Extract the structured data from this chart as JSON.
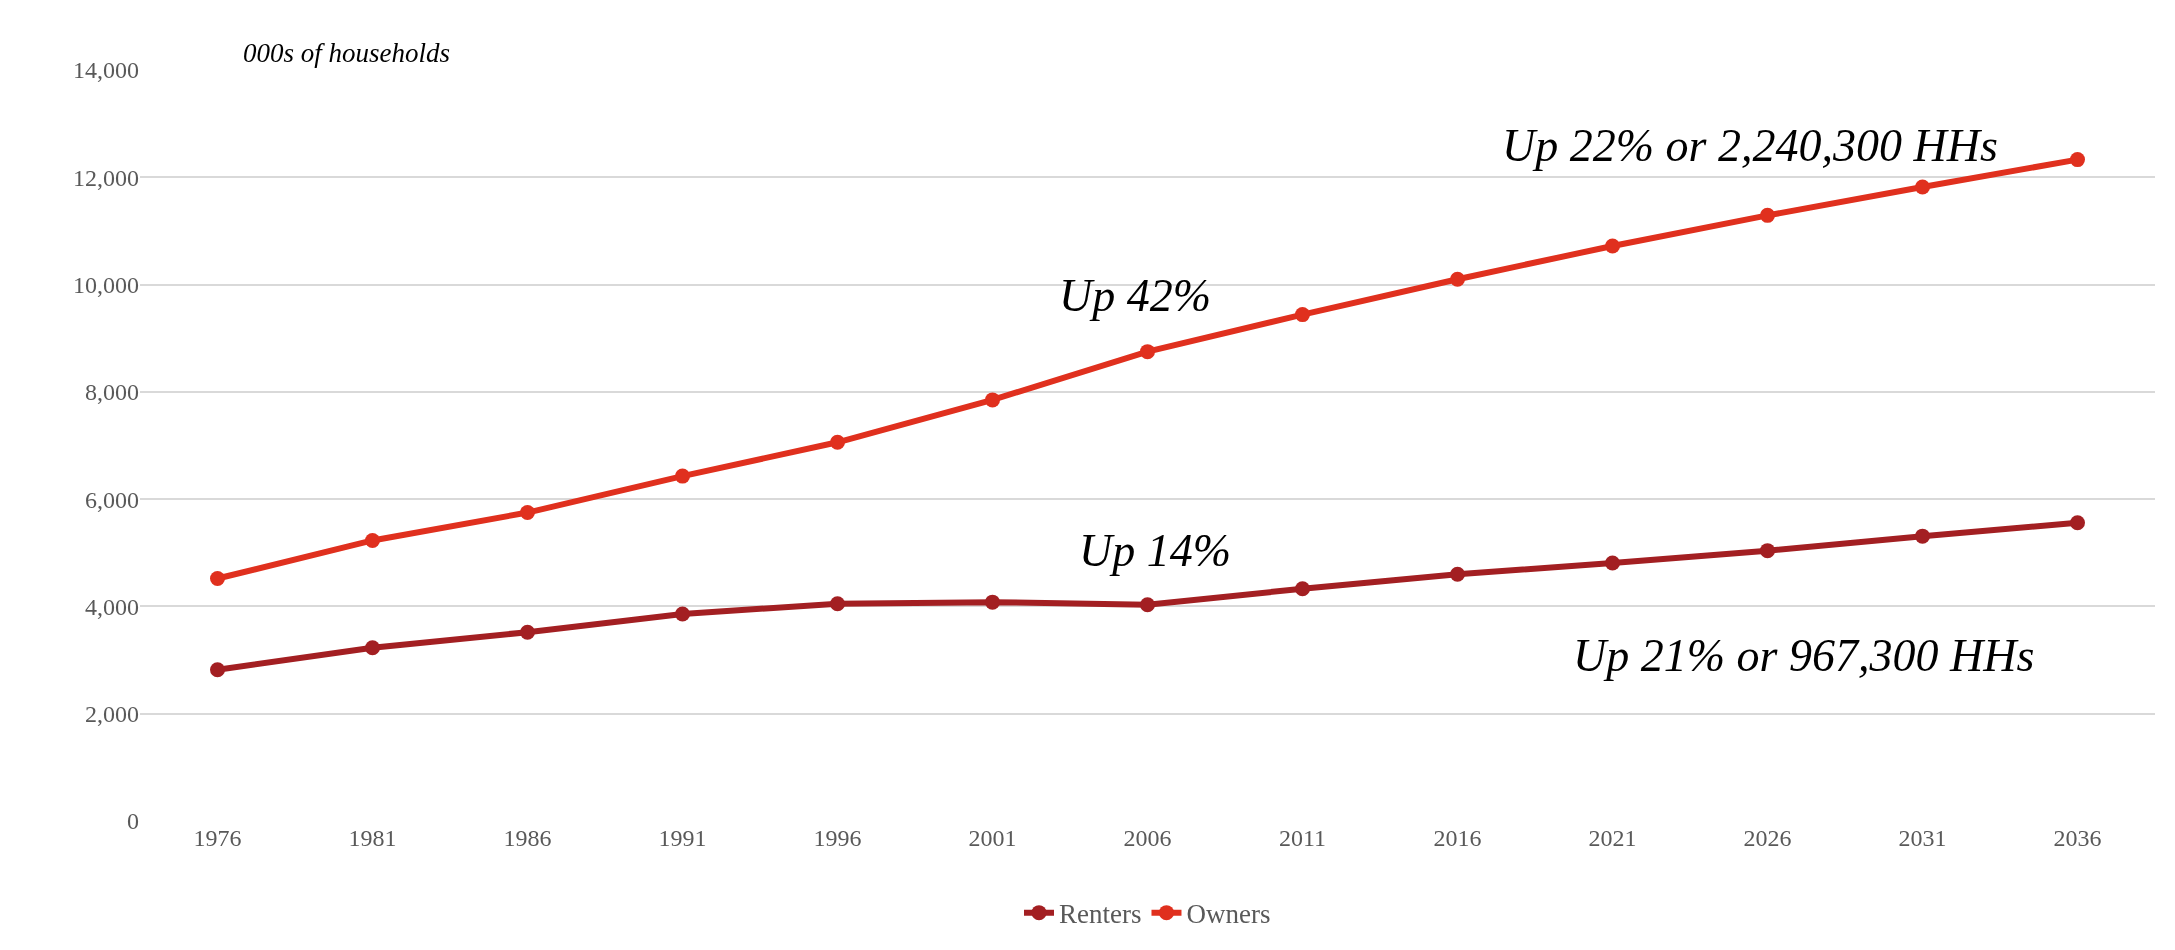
{
  "chart_data": {
    "type": "line",
    "ylabel": "000s of households",
    "categories": [
      "1976",
      "1981",
      "1986",
      "1991",
      "1996",
      "2001",
      "2006",
      "2011",
      "2016",
      "2021",
      "2026",
      "2031",
      "2036"
    ],
    "series": [
      {
        "name": "Renters",
        "color": "#a31f22",
        "values": [
          2820,
          3230,
          3520,
          3860,
          4050,
          4080,
          4030,
          4330,
          4600,
          4810,
          5040,
          5310,
          5560
        ]
      },
      {
        "name": "Owners",
        "color": "#e0301e",
        "values": [
          4520,
          5230,
          5750,
          6430,
          7060,
          7850,
          8750,
          9440,
          10100,
          10720,
          11290,
          11820,
          12330
        ]
      }
    ],
    "ylim": [
      0,
      14000
    ],
    "yticks": [
      {
        "value": 0,
        "label": "0"
      },
      {
        "value": 2000,
        "label": "2,000"
      },
      {
        "value": 4000,
        "label": "4,000"
      },
      {
        "value": 6000,
        "label": "6,000"
      },
      {
        "value": 8000,
        "label": "8,000"
      },
      {
        "value": 10000,
        "label": "10,000"
      },
      {
        "value": 12000,
        "label": "12,000"
      },
      {
        "value": 14000,
        "label": "14,000"
      }
    ],
    "grid": "y",
    "legend": "bottom",
    "marker": "circle",
    "line_style": "solid",
    "annotations": [
      "Up 42%",
      "Up 14%",
      "Up 22% or 2,240,300 HHs",
      "Up 21% or 967,300 HHs"
    ]
  }
}
